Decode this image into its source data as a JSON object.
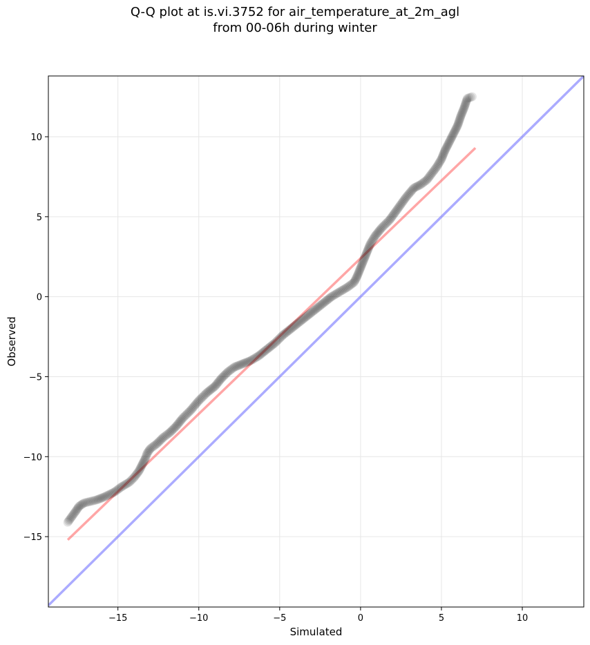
{
  "chart_data": {
    "type": "scatter",
    "title": "Q-Q plot at is.vi.3752 for air_temperature_at_2m_agl",
    "subtitle": "from 00-06h during winter",
    "xlabel": "Simulated",
    "ylabel": "Observed",
    "xlim": [
      -19.3,
      13.8
    ],
    "ylim": [
      -19.4,
      13.8
    ],
    "grid": true,
    "x_ticks": [
      -15,
      -10,
      -5,
      0,
      5,
      10
    ],
    "y_ticks": [
      -15,
      -10,
      -5,
      0,
      5,
      10
    ],
    "x_tick_labels": [
      "−15",
      "−10",
      "−5",
      "0",
      "5",
      "10"
    ],
    "y_tick_labels": [
      "−15",
      "−10",
      "−5",
      "0",
      "5",
      "10"
    ],
    "quantile_points": {
      "color": "#000000",
      "x": [
        -18.1,
        -17.6,
        -17.4,
        -17.1,
        -16.7,
        -16.3,
        -15.8,
        -15.2,
        -14.8,
        -14.3,
        -14.0,
        -13.7,
        -13.5,
        -13.3,
        -13.2,
        -13.0,
        -12.6,
        -12.2,
        -11.8,
        -11.4,
        -11.0,
        -10.5,
        -10.0,
        -9.5,
        -9.0,
        -8.6,
        -8.2,
        -7.8,
        -7.3,
        -6.8,
        -6.3,
        -5.8,
        -5.3,
        -4.8,
        -4.3,
        -3.8,
        -3.3,
        -2.8,
        -2.3,
        -1.8,
        -1.3,
        -0.8,
        -0.4,
        -0.2,
        0.0,
        0.2,
        0.4,
        0.6,
        0.9,
        1.3,
        1.8,
        2.3,
        2.8,
        3.3,
        3.7,
        4.1,
        4.4,
        4.7,
        5.0,
        5.2,
        5.4,
        5.6,
        5.8,
        6.0,
        6.2,
        6.4,
        6.6,
        6.9
      ],
      "y": [
        -14.1,
        -13.4,
        -13.1,
        -12.9,
        -12.8,
        -12.7,
        -12.5,
        -12.2,
        -11.9,
        -11.6,
        -11.3,
        -10.9,
        -10.5,
        -10.1,
        -9.8,
        -9.5,
        -9.2,
        -8.8,
        -8.5,
        -8.1,
        -7.6,
        -7.1,
        -6.5,
        -6.0,
        -5.6,
        -5.1,
        -4.7,
        -4.4,
        -4.2,
        -4.0,
        -3.7,
        -3.3,
        -2.9,
        -2.4,
        -2.0,
        -1.6,
        -1.2,
        -0.8,
        -0.4,
        0.0,
        0.3,
        0.6,
        0.9,
        1.3,
        1.8,
        2.3,
        2.8,
        3.3,
        3.8,
        4.3,
        4.8,
        5.5,
        6.2,
        6.8,
        7.0,
        7.3,
        7.7,
        8.1,
        8.6,
        9.1,
        9.5,
        9.9,
        10.3,
        10.7,
        11.3,
        11.8,
        12.4,
        12.5
      ]
    },
    "fit_line": {
      "color": "#ff4d4d",
      "x": [
        -18.1,
        7.1
      ],
      "y": [
        -15.2,
        9.3
      ]
    },
    "reference_line": {
      "color": "#6666ff",
      "x": [
        -19.3,
        13.8
      ],
      "y": [
        -19.3,
        13.8
      ]
    }
  }
}
